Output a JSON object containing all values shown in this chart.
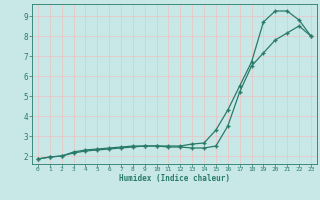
{
  "title": "",
  "xlabel": "Humidex (Indice chaleur)",
  "ylabel": "",
  "bg_color": "#c8e8e8",
  "grid_color": "#e8c8c8",
  "line_color": "#2a7a6a",
  "xlim": [
    -0.5,
    23.5
  ],
  "ylim": [
    1.6,
    9.6
  ],
  "xticks": [
    0,
    1,
    2,
    3,
    4,
    5,
    6,
    7,
    8,
    9,
    10,
    11,
    12,
    13,
    14,
    15,
    16,
    17,
    18,
    19,
    20,
    21,
    22,
    23
  ],
  "yticks": [
    2,
    3,
    4,
    5,
    6,
    7,
    8,
    9
  ],
  "line1_x": [
    0,
    1,
    2,
    3,
    4,
    5,
    6,
    7,
    8,
    9,
    10,
    11,
    12,
    13,
    14,
    15,
    16,
    17,
    18,
    19,
    20,
    21,
    22,
    23
  ],
  "line1_y": [
    1.85,
    1.95,
    2.0,
    2.15,
    2.25,
    2.3,
    2.35,
    2.4,
    2.45,
    2.5,
    2.5,
    2.5,
    2.5,
    2.6,
    2.65,
    3.3,
    4.3,
    5.5,
    6.7,
    8.7,
    9.25,
    9.25,
    8.8,
    8.0
  ],
  "line2_x": [
    0,
    1,
    2,
    3,
    4,
    5,
    6,
    7,
    8,
    9,
    10,
    11,
    12,
    13,
    14,
    15,
    16,
    17,
    18,
    19,
    20,
    21,
    22,
    23
  ],
  "line2_y": [
    1.85,
    1.95,
    2.0,
    2.2,
    2.3,
    2.35,
    2.4,
    2.45,
    2.5,
    2.5,
    2.5,
    2.45,
    2.45,
    2.4,
    2.4,
    2.5,
    3.5,
    5.2,
    6.5,
    7.15,
    7.8,
    8.15,
    8.5,
    8.0
  ]
}
